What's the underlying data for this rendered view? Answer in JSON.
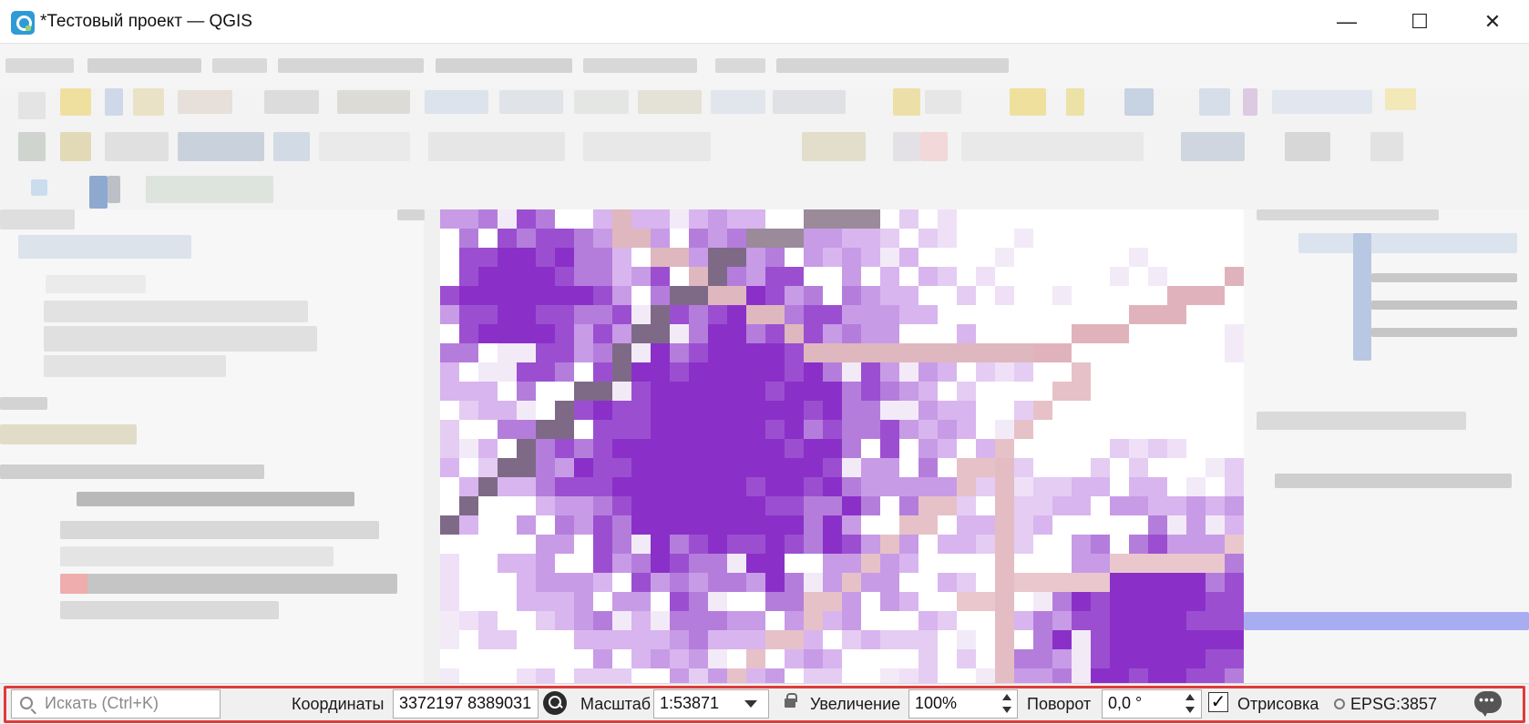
{
  "window": {
    "title": "*Тестовый проект — QGIS",
    "minimize": "—",
    "maximize": "☐",
    "close": "✕"
  },
  "statusbar": {
    "search_placeholder": "Искать (Ctrl+K)",
    "coordinates_label": "Координаты",
    "coordinates_value": "3372197 8389031",
    "scale_label": "Масштаб",
    "scale_value": "1:53871",
    "magnifier_label": "Увеличение",
    "magnifier_value": "100%",
    "rotation_label": "Поворот",
    "rotation_value": "0,0 °",
    "render_label": "Отрисовка",
    "render_checked": true,
    "crs_value": "EPSG:3857"
  },
  "colors": {
    "highlight_frame": "#e03a3a",
    "map_purple": "#9b4fd0",
    "map_road": "#d9a5b0"
  },
  "icons": [
    "qgis-logo-icon",
    "search-icon",
    "magnifier-icon",
    "lock-icon",
    "globe-icon",
    "messages-icon"
  ]
}
